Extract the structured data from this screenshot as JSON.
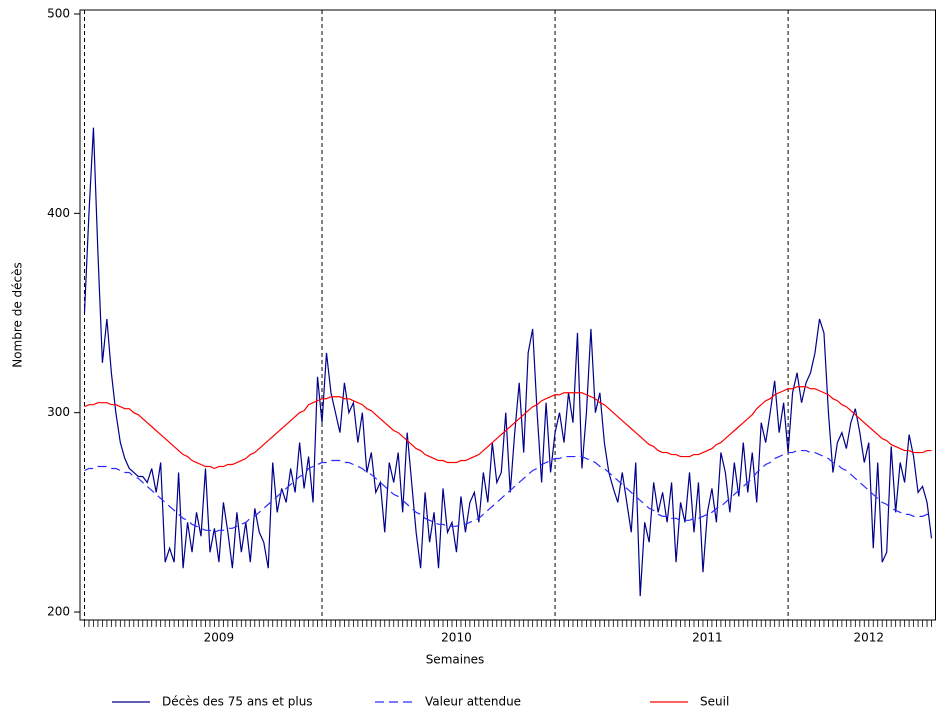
{
  "chart_data": {
    "type": "line",
    "x_label": "Semaines",
    "y_label": "Nombre de décès",
    "x": [
      0,
      1,
      2,
      3,
      4,
      5,
      6,
      7,
      8,
      9,
      10,
      11,
      12,
      13,
      14,
      15,
      16,
      17,
      18,
      19,
      20,
      21,
      22,
      23,
      24,
      25,
      26,
      27,
      28,
      29,
      30,
      31,
      32,
      33,
      34,
      35,
      36,
      37,
      38,
      39,
      40,
      41,
      42,
      43,
      44,
      45,
      46,
      47,
      48,
      49,
      50,
      51,
      52,
      53,
      54,
      55,
      56,
      57,
      58,
      59,
      60,
      61,
      62,
      63,
      64,
      65,
      66,
      67,
      68,
      69,
      70,
      71,
      72,
      73,
      74,
      75,
      76,
      77,
      78,
      79,
      80,
      81,
      82,
      83,
      84,
      85,
      86,
      87,
      88,
      89,
      90,
      91,
      92,
      93,
      94,
      95,
      96,
      97,
      98,
      99,
      100,
      101,
      102,
      103,
      104,
      105,
      106,
      107,
      108,
      109,
      110,
      111,
      112,
      113,
      114,
      115,
      116,
      117,
      118,
      119,
      120,
      121,
      122,
      123,
      124,
      125,
      126,
      127,
      128,
      129,
      130,
      131,
      132,
      133,
      134,
      135,
      136,
      137,
      138,
      139,
      140,
      141,
      142,
      143,
      144,
      145,
      146,
      147,
      148,
      149,
      150,
      151,
      152,
      153,
      154,
      155,
      156,
      157,
      158,
      159,
      160,
      161,
      162,
      163,
      164,
      165,
      166,
      167,
      168,
      169,
      170,
      171,
      172,
      173,
      174,
      175,
      176,
      177,
      178,
      179,
      180,
      181,
      182,
      183,
      184,
      185,
      186,
      187,
      188,
      189
    ],
    "xlim": [
      -1,
      190
    ],
    "xticks": [
      {
        "value": 30,
        "label": "2009"
      },
      {
        "value": 83,
        "label": "2010"
      },
      {
        "value": 139,
        "label": "2011"
      },
      {
        "value": 175,
        "label": "2012"
      }
    ],
    "reference_lines": [
      0,
      53,
      105,
      157
    ],
    "ylim": [
      196,
      502
    ],
    "yticks": [
      200,
      300,
      400,
      500
    ],
    "series": [
      {
        "name": "Décès des 75 ans et plus",
        "color": "#00008b",
        "dash": false,
        "values": [
          350,
          400,
          443,
          380,
          325,
          347,
          320,
          300,
          285,
          277,
          272,
          270,
          268,
          268,
          265,
          272,
          260,
          275,
          225,
          232,
          225,
          270,
          222,
          245,
          230,
          250,
          238,
          272,
          230,
          242,
          225,
          255,
          240,
          222,
          250,
          230,
          245,
          225,
          252,
          240,
          235,
          222,
          275,
          250,
          262,
          255,
          272,
          260,
          285,
          262,
          278,
          255,
          318,
          295,
          330,
          310,
          300,
          290,
          315,
          300,
          305,
          285,
          300,
          270,
          280,
          260,
          265,
          240,
          275,
          265,
          280,
          250,
          290,
          265,
          240,
          222,
          260,
          235,
          250,
          222,
          262,
          240,
          245,
          230,
          258,
          240,
          255,
          260,
          245,
          270,
          255,
          285,
          265,
          270,
          300,
          260,
          290,
          315,
          280,
          330,
          342,
          300,
          265,
          305,
          270,
          290,
          300,
          285,
          310,
          295,
          340,
          272,
          300,
          342,
          300,
          310,
          285,
          270,
          262,
          255,
          270,
          255,
          240,
          275,
          208,
          245,
          235,
          265,
          250,
          260,
          245,
          265,
          225,
          255,
          245,
          270,
          240,
          265,
          220,
          250,
          262,
          245,
          280,
          270,
          250,
          275,
          258,
          285,
          260,
          280,
          255,
          295,
          285,
          300,
          316,
          290,
          305,
          280,
          310,
          320,
          305,
          315,
          320,
          330,
          347,
          340,
          300,
          270,
          285,
          290,
          282,
          295,
          302,
          290,
          275,
          285,
          232,
          275,
          225,
          230,
          283,
          250,
          275,
          265,
          289,
          278,
          260,
          263,
          255,
          237
        ]
      },
      {
        "name": "Valeur attendue",
        "color": "#2b2bff",
        "dash": true,
        "values": [
          271,
          272,
          272,
          273,
          273,
          273,
          272,
          272,
          271,
          270,
          270,
          268,
          267,
          265,
          263,
          261,
          259,
          257,
          255,
          253,
          251,
          249,
          247,
          246,
          244,
          243,
          242,
          241,
          241,
          240,
          241,
          241,
          242,
          242,
          243,
          244,
          245,
          247,
          248,
          250,
          252,
          254,
          256,
          258,
          260,
          262,
          264,
          266,
          268,
          269,
          272,
          273,
          274,
          275,
          275,
          276,
          276,
          276,
          275,
          275,
          274,
          273,
          272,
          270,
          269,
          267,
          265,
          263,
          261,
          259,
          258,
          256,
          254,
          252,
          250,
          249,
          247,
          246,
          245,
          244,
          244,
          243,
          243,
          243,
          244,
          244,
          245,
          246,
          247,
          249,
          251,
          253,
          255,
          257,
          259,
          261,
          263,
          265,
          267,
          269,
          271,
          272,
          274,
          275,
          276,
          277,
          277,
          278,
          278,
          278,
          278,
          278,
          277,
          276,
          275,
          273,
          272,
          270,
          268,
          266,
          264,
          262,
          260,
          258,
          256,
          254,
          252,
          251,
          249,
          248,
          248,
          247,
          247,
          246,
          246,
          246,
          247,
          247,
          248,
          249,
          250,
          252,
          253,
          255,
          257,
          259,
          261,
          263,
          265,
          267,
          270,
          272,
          274,
          275,
          277,
          278,
          279,
          280,
          280,
          281,
          281,
          281,
          280,
          280,
          279,
          278,
          277,
          275,
          274,
          272,
          271,
          269,
          267,
          265,
          263,
          261,
          259,
          257,
          255,
          254,
          252,
          251,
          250,
          249,
          249,
          248,
          248,
          248,
          249,
          249
        ]
      },
      {
        "name": "Seuil",
        "color": "#ff0000",
        "dash": false,
        "values": [
          303,
          304,
          304,
          305,
          305,
          305,
          304,
          304,
          303,
          302,
          302,
          300,
          299,
          297,
          295,
          293,
          291,
          289,
          287,
          285,
          283,
          281,
          279,
          278,
          276,
          275,
          274,
          273,
          273,
          272,
          273,
          273,
          274,
          274,
          275,
          276,
          277,
          279,
          280,
          282,
          284,
          286,
          288,
          290,
          292,
          294,
          296,
          298,
          300,
          301,
          304,
          305,
          306,
          307,
          307,
          308,
          308,
          308,
          307,
          307,
          306,
          305,
          304,
          302,
          301,
          299,
          297,
          295,
          293,
          291,
          290,
          288,
          286,
          284,
          282,
          281,
          279,
          278,
          277,
          276,
          276,
          275,
          275,
          275,
          276,
          276,
          277,
          278,
          279,
          281,
          283,
          285,
          287,
          289,
          291,
          293,
          295,
          297,
          299,
          301,
          303,
          304,
          306,
          307,
          308,
          309,
          309,
          310,
          310,
          310,
          310,
          310,
          309,
          308,
          307,
          305,
          304,
          302,
          300,
          298,
          296,
          294,
          292,
          290,
          288,
          286,
          284,
          283,
          281,
          280,
          280,
          279,
          279,
          278,
          278,
          278,
          279,
          279,
          280,
          281,
          282,
          284,
          285,
          287,
          289,
          291,
          293,
          295,
          297,
          299,
          302,
          304,
          306,
          307,
          309,
          310,
          311,
          312,
          312,
          313,
          313,
          313,
          312,
          312,
          311,
          310,
          309,
          307,
          306,
          304,
          303,
          301,
          299,
          297,
          295,
          293,
          291,
          289,
          287,
          286,
          284,
          283,
          282,
          281,
          281,
          280,
          280,
          280,
          281,
          281
        ]
      }
    ]
  }
}
